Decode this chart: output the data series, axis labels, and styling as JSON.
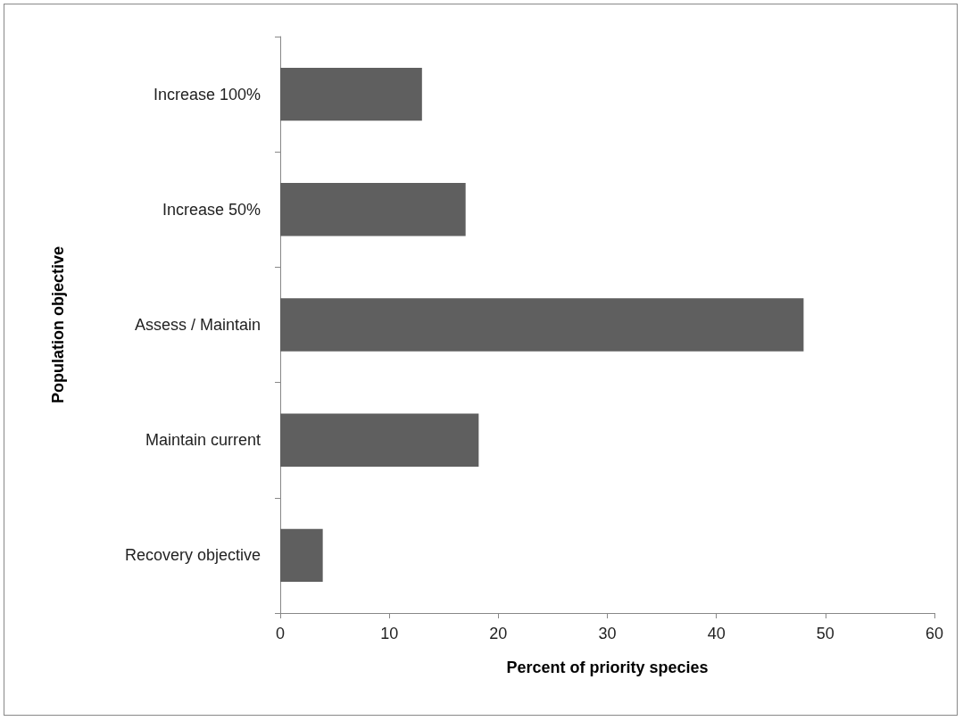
{
  "chart_data": {
    "type": "bar",
    "orientation": "horizontal",
    "categories": [
      "Increase 100%",
      "Increase 50%",
      "Assess / Maintain",
      "Maintain current",
      "Recovery objective"
    ],
    "values": [
      13,
      17,
      48,
      18.2,
      3.9
    ],
    "color": "#5f5f5f",
    "xlabel": "Percent of priority species",
    "ylabel": "Population objective",
    "xlim": [
      0,
      60
    ],
    "xticks": [
      0,
      10,
      20,
      30,
      40,
      50,
      60
    ],
    "grid": false
  }
}
